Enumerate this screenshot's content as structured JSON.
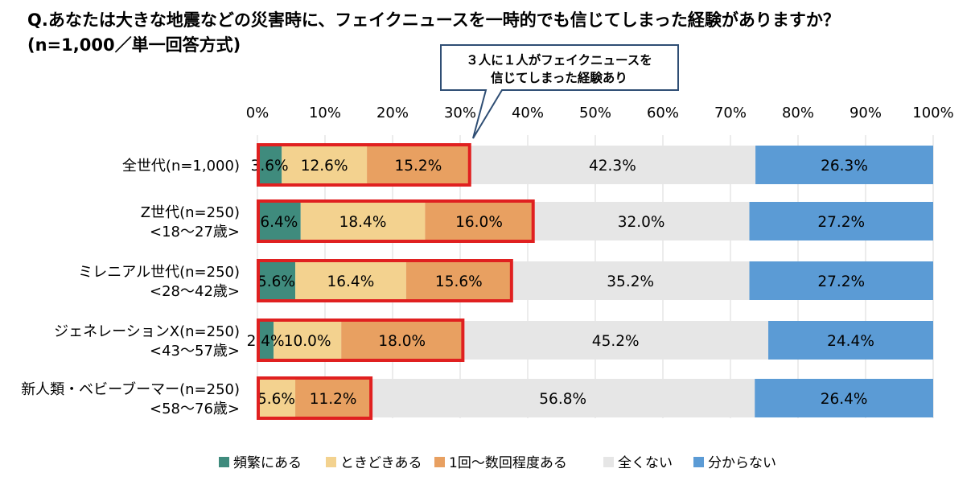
{
  "title_line1": "Q.あなたは大きな地震などの災害時に、フェイクニュースを一時的でも信じてしまった経験がありますか？",
  "title_line2": "(n=1,000／単一回答方式)",
  "callout": {
    "line1": "３人に１人がフェイクニュースを",
    "line2": "信じてしまった経験あり"
  },
  "chart_data": {
    "type": "bar",
    "orientation": "horizontal",
    "stacked": true,
    "xlim": [
      0,
      100
    ],
    "xticks": [
      "0%",
      "10%",
      "20%",
      "30%",
      "40%",
      "50%",
      "60%",
      "70%",
      "80%",
      "90%",
      "100%"
    ],
    "categories": [
      [
        "全世代(n=1,000)"
      ],
      [
        "Z世代(n=250)",
        "<18～27歳>"
      ],
      [
        "ミレニアル世代(n=250)",
        "<28～42歳>"
      ],
      [
        "ジェネレーションX(n=250)",
        "<43～57歳>"
      ],
      [
        "新人類・ベビーブーマー(n=250)",
        "<58～76歳>"
      ]
    ],
    "series": [
      {
        "name": "頻繁にある",
        "color": "#3f8b7d",
        "values": [
          3.6,
          6.4,
          5.6,
          2.4,
          0.0
        ],
        "labels": [
          "3.6%",
          "6.4%",
          "5.6%",
          "2.4%",
          ""
        ]
      },
      {
        "name": "ときどきある",
        "color": "#f3d28f",
        "values": [
          12.6,
          18.4,
          16.4,
          10.0,
          5.6
        ],
        "labels": [
          "12.6%",
          "18.4%",
          "16.4%",
          "10.0%",
          "5.6%"
        ]
      },
      {
        "name": "1回～数回程度ある",
        "color": "#e8a061",
        "values": [
          15.2,
          16.0,
          15.6,
          18.0,
          11.2
        ],
        "labels": [
          "15.2%",
          "16.0%",
          "15.6%",
          "18.0%",
          "11.2%"
        ]
      },
      {
        "name": "全くない",
        "color": "#e6e6e6",
        "values": [
          42.3,
          32.0,
          35.2,
          45.2,
          56.8
        ],
        "labels": [
          "42.3%",
          "32.0%",
          "35.2%",
          "45.2%",
          "56.8%"
        ]
      },
      {
        "name": "分からない",
        "color": "#5b9bd5",
        "values": [
          26.3,
          27.2,
          27.2,
          24.4,
          26.4
        ],
        "labels": [
          "26.3%",
          "27.2%",
          "27.2%",
          "24.4%",
          "26.4%"
        ]
      }
    ],
    "highlight": {
      "series": [
        0,
        1,
        2
      ],
      "color": "#e02020"
    }
  }
}
